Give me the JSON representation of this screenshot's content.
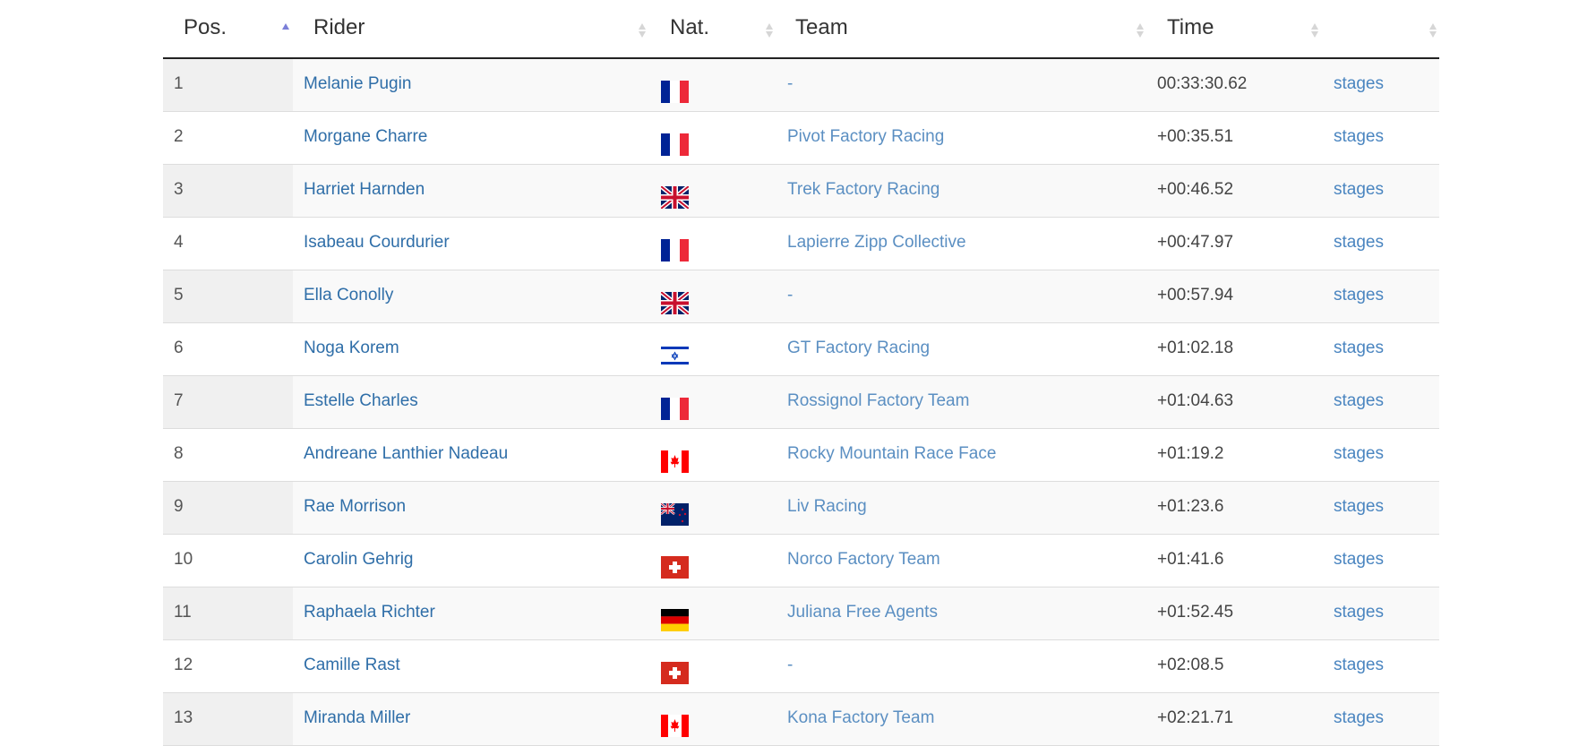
{
  "header": {
    "columns": [
      {
        "label": "Pos.",
        "sort": "asc"
      },
      {
        "label": "Rider",
        "sort": "none"
      },
      {
        "label": "Nat.",
        "sort": "none"
      },
      {
        "label": "Team",
        "sort": "none"
      },
      {
        "label": "Time",
        "sort": "none"
      },
      {
        "label": "",
        "sort": "none"
      }
    ],
    "sort_active_color": "#7b7fd8",
    "sort_inactive_color": "#d6d6d6"
  },
  "rows": [
    {
      "pos": "1",
      "rider": "Melanie Pugin",
      "nat": "flag-fr",
      "team": "-",
      "time": "00:33:30.62",
      "link": "stages"
    },
    {
      "pos": "2",
      "rider": "Morgane Charre",
      "nat": "flag-fr",
      "team": "Pivot Factory Racing",
      "time": "+00:35.51",
      "link": "stages"
    },
    {
      "pos": "3",
      "rider": "Harriet Harnden",
      "nat": "flag-gb",
      "team": "Trek Factory Racing",
      "time": "+00:46.52",
      "link": "stages"
    },
    {
      "pos": "4",
      "rider": "Isabeau Courdurier",
      "nat": "flag-fr",
      "team": "Lapierre Zipp Collective",
      "time": "+00:47.97",
      "link": "stages"
    },
    {
      "pos": "5",
      "rider": "Ella Conolly",
      "nat": "flag-gb",
      "team": "-",
      "time": "+00:57.94",
      "link": "stages"
    },
    {
      "pos": "6",
      "rider": "Noga Korem",
      "nat": "flag-il",
      "team": "GT Factory Racing",
      "time": "+01:02.18",
      "link": "stages"
    },
    {
      "pos": "7",
      "rider": "Estelle Charles",
      "nat": "flag-fr",
      "team": "Rossignol Factory Team",
      "time": "+01:04.63",
      "link": "stages"
    },
    {
      "pos": "8",
      "rider": "Andreane Lanthier Nadeau",
      "nat": "flag-ca",
      "team": "Rocky Mountain Race Face",
      "time": "+01:19.2",
      "link": "stages"
    },
    {
      "pos": "9",
      "rider": "Rae Morrison",
      "nat": "flag-nz",
      "team": "Liv Racing",
      "time": "+01:23.6",
      "link": "stages"
    },
    {
      "pos": "10",
      "rider": "Carolin Gehrig",
      "nat": "flag-ch",
      "team": "Norco Factory Team",
      "time": "+01:41.6",
      "link": "stages"
    },
    {
      "pos": "11",
      "rider": "Raphaela Richter",
      "nat": "flag-de",
      "team": "Juliana Free Agents",
      "time": "+01:52.45",
      "link": "stages"
    },
    {
      "pos": "12",
      "rider": "Camille Rast",
      "nat": "flag-ch",
      "team": "-",
      "time": "+02:08.5",
      "link": "stages"
    },
    {
      "pos": "13",
      "rider": "Miranda Miller",
      "nat": "flag-ca",
      "team": "Kona Factory Team",
      "time": "+02:21.71",
      "link": "stages"
    }
  ]
}
